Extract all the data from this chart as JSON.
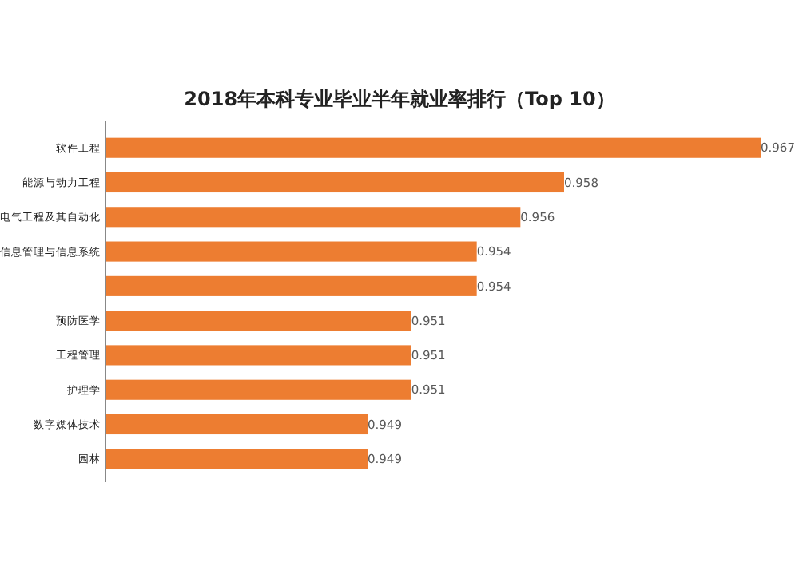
{
  "chart_data": {
    "type": "bar",
    "orientation": "horizontal",
    "title": "2018年本科专业毕业半年就业率排行（Top 10）",
    "categories": [
      "软件工程",
      "能源与动力工程",
      "电气工程及其自动化",
      "信息管理与信息系统",
      null,
      "预防医学",
      "工程管理",
      "护理学",
      "数字媒体技术",
      "园林"
    ],
    "values": [
      0.967,
      0.958,
      0.956,
      0.954,
      0.954,
      0.951,
      0.951,
      0.951,
      0.949,
      0.949
    ],
    "color": "#ed7d31",
    "xlim": [
      0.937,
      0.967
    ],
    "data_labels": true,
    "tick_labels": "y"
  }
}
